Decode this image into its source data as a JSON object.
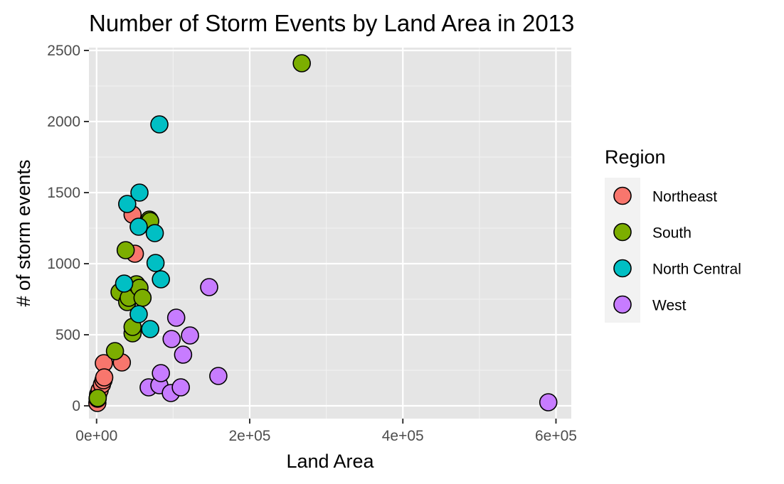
{
  "chart_data": {
    "type": "scatter",
    "title": "Number of Storm Events by Land Area in 2013",
    "xlabel": "Land Area",
    "ylabel": "# of storm events",
    "xlim": [
      -10000,
      620000
    ],
    "ylim": [
      -90,
      2520
    ],
    "x_ticks": [
      0,
      200000,
      400000,
      600000
    ],
    "x_tick_labels": [
      "0e+00",
      "2e+05",
      "4e+05",
      "6e+05"
    ],
    "y_ticks": [
      0,
      500,
      1000,
      1500,
      2000,
      2500
    ],
    "y_tick_labels": [
      "0",
      "500",
      "1000",
      "1500",
      "2000",
      "2500"
    ],
    "grid": true,
    "panel_background": "#e5e5e5",
    "legend": {
      "title": "Region",
      "placement": "right"
    },
    "series": [
      {
        "name": "Northeast",
        "color": "#F8766D",
        "points": [
          [
            1000,
            20
          ],
          [
            1300,
            50
          ],
          [
            2000,
            80
          ],
          [
            4000,
            110
          ],
          [
            7000,
            150
          ],
          [
            9000,
            180
          ],
          [
            9500,
            300
          ],
          [
            10000,
            200
          ],
          [
            33000,
            305
          ],
          [
            47000,
            1345
          ],
          [
            50000,
            1070
          ]
        ]
      },
      {
        "name": "South",
        "color": "#7CAE00",
        "points": [
          [
            1500,
            55
          ],
          [
            24000,
            385
          ],
          [
            30000,
            800
          ],
          [
            38000,
            1095
          ],
          [
            40000,
            730
          ],
          [
            42000,
            760
          ],
          [
            47000,
            510
          ],
          [
            47000,
            555
          ],
          [
            52000,
            855
          ],
          [
            56000,
            830
          ],
          [
            60000,
            760
          ],
          [
            69000,
            1310
          ],
          [
            70000,
            1300
          ],
          [
            268000,
            2410
          ]
        ]
      },
      {
        "name": "North Central",
        "color": "#00BFC4",
        "points": [
          [
            36000,
            860
          ],
          [
            40000,
            1420
          ],
          [
            55000,
            645
          ],
          [
            55000,
            1260
          ],
          [
            56000,
            1500
          ],
          [
            70000,
            540
          ],
          [
            76000,
            1215
          ],
          [
            77000,
            1005
          ],
          [
            82000,
            1980
          ],
          [
            84000,
            890
          ]
        ]
      },
      {
        "name": "West",
        "color": "#C77CFF",
        "points": [
          [
            68000,
            130
          ],
          [
            82000,
            145
          ],
          [
            84000,
            230
          ],
          [
            97000,
            90
          ],
          [
            98000,
            470
          ],
          [
            104000,
            620
          ],
          [
            110000,
            130
          ],
          [
            113000,
            360
          ],
          [
            122000,
            495
          ],
          [
            147000,
            835
          ],
          [
            159000,
            210
          ],
          [
            590000,
            25
          ]
        ]
      }
    ]
  }
}
